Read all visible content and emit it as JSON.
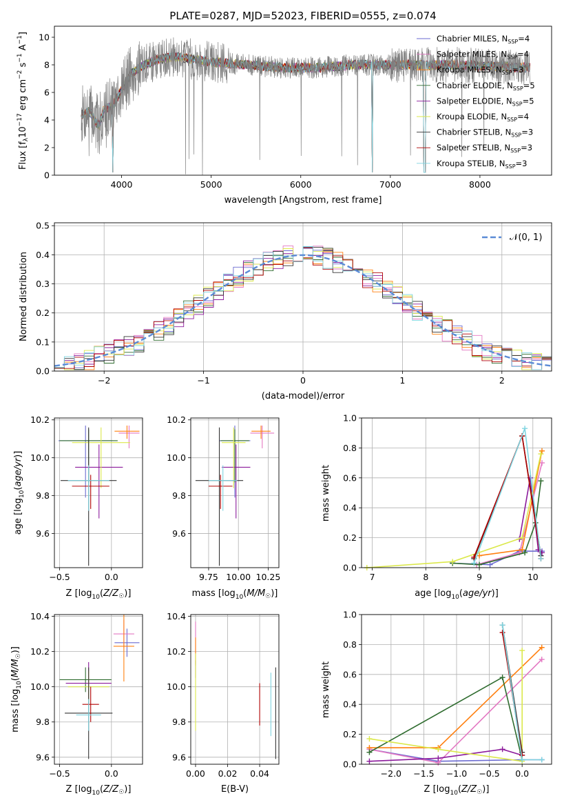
{
  "chart_data": [
    {
      "type": "line",
      "title": "PLATE=0287, MJD=52023, FIBERID=0555, z=0.074",
      "xlabel": "wavelength [Angstrom, rest frame]",
      "ylabel": "Flux [fλ10⁻¹⁷ erg cm⁻² s⁻¹ A⁻¹]",
      "xlim": [
        3250,
        8800
      ],
      "ylim": [
        0,
        10.8
      ],
      "xticks": [
        "4000",
        "5000",
        "6000",
        "7000",
        "8000"
      ],
      "yticks": [
        "0",
        "2",
        "4",
        "6",
        "8",
        "10"
      ],
      "legend_position": "upper right",
      "data_color": "#808080",
      "series": [
        {
          "name": "Chabrier MILES, N_SSP=4",
          "color": "#6a6ad0"
        },
        {
          "name": "Salpeter MILES, N_SSP=4",
          "color": "#e377c2"
        },
        {
          "name": "Kroupa MILES, N_SSP=3",
          "color": "#ff7f0e"
        },
        {
          "name": "Chabrier ELODIE, N_SSP=5",
          "color": "#2e6b2e"
        },
        {
          "name": "Salpeter ELODIE, N_SSP=5",
          "color": "#8b1a9b"
        },
        {
          "name": "Kroupa ELODIE, N_SSP=4",
          "color": "#dbe84a"
        },
        {
          "name": "Chabrier STELIB, N_SSP=3",
          "color": "#333333"
        },
        {
          "name": "Salpeter STELIB, N_SSP=3",
          "color": "#b00000"
        },
        {
          "name": "Kroupa STELIB, N_SSP=3",
          "color": "#7fd4e0"
        }
      ],
      "legend_labels": [
        {
          "pre": "Chabrier MILES, N",
          "sub": "SSP",
          "post": "=4"
        },
        {
          "pre": "Salpeter MILES, N",
          "sub": "SSP",
          "post": "=4"
        },
        {
          "pre": "Kroupa MILES, N",
          "sub": "SSP",
          "post": "=3"
        },
        {
          "pre": "Chabrier ELODIE, N",
          "sub": "SSP",
          "post": "=5"
        },
        {
          "pre": "Salpeter ELODIE, N",
          "sub": "SSP",
          "post": "=5"
        },
        {
          "pre": "Kroupa ELODIE, N",
          "sub": "SSP",
          "post": "=4"
        },
        {
          "pre": "Chabrier STELIB, N",
          "sub": "SSP",
          "post": "=3"
        },
        {
          "pre": "Salpeter STELIB, N",
          "sub": "SSP",
          "post": "=3"
        },
        {
          "pre": "Kroupa STELIB, N",
          "sub": "SSP",
          "post": "=3"
        }
      ],
      "spectrum_keypoints": [
        [
          3550,
          4.4
        ],
        [
          3650,
          4.6
        ],
        [
          3700,
          3.9
        ],
        [
          3750,
          3.6
        ],
        [
          3800,
          4.7
        ],
        [
          3850,
          4.9
        ],
        [
          3900,
          5.0
        ],
        [
          3950,
          5.6
        ],
        [
          4000,
          6.2
        ],
        [
          4100,
          7.3
        ],
        [
          4200,
          7.8
        ],
        [
          4300,
          8.1
        ],
        [
          4400,
          8.4
        ],
        [
          4500,
          8.5
        ],
        [
          4600,
          8.6
        ],
        [
          4700,
          8.5
        ],
        [
          4800,
          8.4
        ],
        [
          4900,
          8.3
        ],
        [
          5000,
          8.2
        ],
        [
          5200,
          8.1
        ],
        [
          5400,
          8.0
        ],
        [
          5600,
          7.9
        ],
        [
          5800,
          7.8
        ],
        [
          6000,
          7.8
        ],
        [
          6200,
          7.8
        ],
        [
          6400,
          7.9
        ],
        [
          6600,
          8.0
        ],
        [
          6800,
          8.0
        ],
        [
          7000,
          8.0
        ],
        [
          7200,
          8.0
        ],
        [
          7400,
          8.0
        ],
        [
          7600,
          8.0
        ],
        [
          7800,
          8.0
        ],
        [
          8000,
          7.9
        ],
        [
          8200,
          7.9
        ],
        [
          8400,
          7.8
        ],
        [
          8550,
          7.8
        ]
      ]
    },
    {
      "type": "bar",
      "xlabel": "(data-model)/error",
      "ylabel": "Normed distribution",
      "xlim": [
        -2.5,
        2.5
      ],
      "ylim": [
        0,
        0.51
      ],
      "xticks": [
        "−2",
        "−1",
        "0",
        "1",
        "2"
      ],
      "yticks": [
        "0.0",
        "0.1",
        "0.2",
        "0.3",
        "0.4",
        "0.5"
      ],
      "grid": true,
      "legend_position": "upper right",
      "legend_label": "𝒩(0, 1)",
      "reference_curve": {
        "name": "N(0,1)",
        "mean": 0,
        "sigma": 1,
        "color": "#5b8bd6",
        "style": "dashed"
      },
      "histogram_bin_width": 0.1
    },
    {
      "type": "scatter",
      "xlabel": "Z [log10(Z/Z☉)]",
      "ylabel": "age [log10(age/yr)]",
      "xlim": [
        -0.55,
        0.3
      ],
      "ylim": [
        9.42,
        10.21
      ],
      "xticks": [
        "−0.5",
        "0.0"
      ],
      "yticks": [
        "9.6",
        "9.8",
        "10.0",
        "10.2"
      ],
      "grid": true,
      "points": [
        {
          "x": -0.25,
          "xerr": 0.26,
          "y": 10.09,
          "yerr_lo": 0.3,
          "yerr_hi": 0.08,
          "color": "#6a6ad0"
        },
        {
          "x": 0.17,
          "xerr": 0.1,
          "y": 10.13,
          "yerr_lo": 0.08,
          "yerr_hi": 0.04,
          "color": "#e377c2"
        },
        {
          "x": 0.15,
          "xerr": 0.12,
          "y": 10.14,
          "yerr_lo": 0.04,
          "yerr_hi": 0.03,
          "color": "#ff7f0e"
        },
        {
          "x": -0.22,
          "xerr": 0.28,
          "y": 10.09,
          "yerr_lo": 0.22,
          "yerr_hi": 0.06,
          "color": "#2e6b2e"
        },
        {
          "x": -0.12,
          "xerr": 0.23,
          "y": 9.95,
          "yerr_lo": 0.27,
          "yerr_hi": 0.12,
          "color": "#8b1a9b"
        },
        {
          "x": -0.1,
          "xerr": 0.28,
          "y": 10.08,
          "yerr_lo": 0.24,
          "yerr_hi": 0.08,
          "color": "#dbe84a"
        },
        {
          "x": -0.22,
          "xerr": 0.27,
          "y": 9.88,
          "yerr_lo": 0.45,
          "yerr_hi": 0.28,
          "color": "#333333"
        },
        {
          "x": -0.2,
          "xerr": 0.18,
          "y": 9.85,
          "yerr_lo": 0.12,
          "yerr_hi": 0.06,
          "color": "#b00000"
        },
        {
          "x": -0.22,
          "xerr": 0.2,
          "y": 9.88,
          "yerr_lo": 0.16,
          "yerr_hi": 0.08,
          "color": "#7fd4e0"
        }
      ]
    },
    {
      "type": "scatter",
      "xlabel": "mass [log10(M/M☉)]",
      "xlim": [
        9.6,
        10.34
      ],
      "ylim": [
        9.42,
        10.21
      ],
      "xticks": [
        "9.75",
        "10.00",
        "10.25"
      ],
      "yticks": [
        "9.6",
        "9.8",
        "10.0",
        "10.2"
      ],
      "grid": true,
      "points": [
        {
          "x": 9.97,
          "xerr": 0.13,
          "y": 10.09,
          "yerr_lo": 0.3,
          "yerr_hi": 0.08,
          "color": "#6a6ad0"
        },
        {
          "x": 10.2,
          "xerr": 0.1,
          "y": 10.13,
          "yerr_lo": 0.08,
          "yerr_hi": 0.04,
          "color": "#e377c2"
        },
        {
          "x": 10.19,
          "xerr": 0.08,
          "y": 10.14,
          "yerr_lo": 0.04,
          "yerr_hi": 0.03,
          "color": "#ff7f0e"
        },
        {
          "x": 9.97,
          "xerr": 0.12,
          "y": 10.09,
          "yerr_lo": 0.22,
          "yerr_hi": 0.06,
          "color": "#2e6b2e"
        },
        {
          "x": 9.98,
          "xerr": 0.12,
          "y": 9.95,
          "yerr_lo": 0.27,
          "yerr_hi": 0.12,
          "color": "#8b1a9b"
        },
        {
          "x": 9.96,
          "xerr": 0.1,
          "y": 10.08,
          "yerr_lo": 0.24,
          "yerr_hi": 0.08,
          "color": "#dbe84a"
        },
        {
          "x": 9.84,
          "xerr": 0.2,
          "y": 9.88,
          "yerr_lo": 0.45,
          "yerr_hi": 0.28,
          "color": "#333333"
        },
        {
          "x": 9.85,
          "xerr": 0.1,
          "y": 9.85,
          "yerr_lo": 0.12,
          "yerr_hi": 0.06,
          "color": "#b00000"
        },
        {
          "x": 9.87,
          "xerr": 0.12,
          "y": 9.88,
          "yerr_lo": 0.16,
          "yerr_hi": 0.08,
          "color": "#7fd4e0"
        }
      ]
    },
    {
      "type": "line",
      "xlabel": "age [log10(age/yr)]",
      "ylabel": "mass weight",
      "xlim": [
        6.8,
        10.35
      ],
      "ylim": [
        0,
        1.0
      ],
      "xticks": [
        "7",
        "8",
        "9",
        "10"
      ],
      "yticks": [
        "0.0",
        "0.2",
        "0.4",
        "0.6",
        "0.8",
        "1.0"
      ],
      "grid": true,
      "series": [
        {
          "color": "#6a6ad0",
          "points": [
            [
              8.5,
              0.03
            ],
            [
              9.2,
              0.02
            ],
            [
              9.75,
              0.11
            ],
            [
              10.17,
              0.11
            ]
          ]
        },
        {
          "color": "#e377c2",
          "points": [
            [
              8.95,
              0.02
            ],
            [
              9.75,
              0.1
            ],
            [
              10.17,
              0.7
            ]
          ]
        },
        {
          "color": "#ff7f0e",
          "points": [
            [
              9.0,
              0.08
            ],
            [
              9.8,
              0.12
            ],
            [
              10.17,
              0.78
            ]
          ]
        },
        {
          "color": "#2e6b2e",
          "points": [
            [
              8.5,
              0.03
            ],
            [
              9.0,
              0.02
            ],
            [
              9.85,
              0.1
            ],
            [
              10.05,
              0.3
            ],
            [
              10.15,
              0.58
            ]
          ]
        },
        {
          "color": "#8b1a9b",
          "points": [
            [
              9.75,
              0.19
            ],
            [
              9.95,
              0.6
            ],
            [
              10.1,
              0.12
            ],
            [
              10.17,
              0.1
            ]
          ]
        },
        {
          "color": "#dbe84a",
          "points": [
            [
              6.9,
              0.0
            ],
            [
              8.5,
              0.04
            ],
            [
              9.8,
              0.2
            ],
            [
              10.15,
              0.76
            ]
          ]
        },
        {
          "color": "#333333",
          "points": [
            [
              8.9,
              0.06
            ],
            [
              9.8,
              0.88
            ],
            [
              10.15,
              0.08
            ]
          ]
        },
        {
          "color": "#b00000",
          "points": [
            [
              8.9,
              0.07
            ],
            [
              9.8,
              0.88
            ],
            [
              10.15,
              0.06
            ]
          ]
        },
        {
          "color": "#7fd4e0",
          "points": [
            [
              8.9,
              0.03
            ],
            [
              9.85,
              0.93
            ],
            [
              10.15,
              0.06
            ]
          ]
        }
      ]
    },
    {
      "type": "scatter",
      "xlabel": "Z [log10(Z/Z☉)]",
      "ylabel": "mass [log10(M/M☉)]",
      "xlim": [
        -0.55,
        0.3
      ],
      "ylim": [
        9.56,
        10.41
      ],
      "xticks": [
        "−0.5",
        "0.0"
      ],
      "yticks": [
        "9.6",
        "9.8",
        "10.0",
        "10.2",
        "10.4"
      ],
      "grid": true,
      "points": [
        {
          "x": 0.15,
          "xerr": 0.12,
          "y": 10.25,
          "yerr": 0.08,
          "color": "#6a6ad0"
        },
        {
          "x": 0.12,
          "xerr": 0.1,
          "y": 10.3,
          "yerr": 0.08,
          "color": "#e377c2"
        },
        {
          "x": 0.12,
          "xerr": 0.1,
          "y": 10.23,
          "yerr": 0.2,
          "color": "#ff7f0e"
        },
        {
          "x": -0.25,
          "xerr": 0.25,
          "y": 10.04,
          "yerr": 0.07,
          "color": "#2e6b2e"
        },
        {
          "x": -0.22,
          "xerr": 0.22,
          "y": 10.02,
          "yerr": 0.12,
          "color": "#8b1a9b"
        },
        {
          "x": -0.22,
          "xerr": 0.2,
          "y": 10.0,
          "yerr": 0.09,
          "color": "#dbe84a"
        },
        {
          "x": -0.22,
          "xerr": 0.23,
          "y": 9.85,
          "yerr": 0.26,
          "color": "#333333"
        },
        {
          "x": -0.2,
          "xerr": 0.08,
          "y": 9.9,
          "yerr": 0.1,
          "color": "#b00000"
        },
        {
          "x": -0.22,
          "xerr": 0.12,
          "y": 9.84,
          "yerr": 0.09,
          "color": "#7fd4e0"
        }
      ]
    },
    {
      "type": "scatter",
      "xlabel": "E(B-V)",
      "xlim": [
        -0.003,
        0.052
      ],
      "ylim": [
        9.56,
        10.41
      ],
      "xticks": [
        "0.00",
        "0.02",
        "0.04"
      ],
      "yticks": [
        "9.6",
        "9.8",
        "10.0",
        "10.2",
        "10.4"
      ],
      "grid": true,
      "points": [
        {
          "x": 0.0,
          "y": 10.25,
          "yerr": 0.12,
          "color": "#e377c2"
        },
        {
          "x": 0.0,
          "y": 10.2,
          "yerr": 0.08,
          "color": "#ff7f0e"
        },
        {
          "x": 0.0,
          "y": 10.1,
          "yerr": 0.05,
          "color": "#8b1a9b"
        },
        {
          "x": 0.0,
          "y": 9.97,
          "yerr": 0.22,
          "color": "#dbe84a"
        },
        {
          "x": 0.04,
          "y": 9.9,
          "yerr": 0.12,
          "color": "#b00000"
        },
        {
          "x": 0.047,
          "y": 9.9,
          "yerr": 0.18,
          "color": "#7fd4e0"
        },
        {
          "x": 0.05,
          "y": 9.85,
          "yerr": 0.26,
          "color": "#333333"
        }
      ]
    },
    {
      "type": "line",
      "xlabel": "Z [log10(Z/Z☉)]",
      "ylabel": "mass weight",
      "xlim": [
        -2.45,
        0.45
      ],
      "ylim": [
        0,
        1.0
      ],
      "xticks": [
        "−2.0",
        "−1.5",
        "−1.0",
        "−0.5",
        "0.0"
      ],
      "yticks": [
        "0.0",
        "0.2",
        "0.4",
        "0.6",
        "0.8",
        "1.0"
      ],
      "grid": true,
      "series": [
        {
          "color": "#6a6ad0",
          "points": [
            [
              -2.33,
              0.1
            ],
            [
              -1.28,
              0.02
            ],
            [
              0.0,
              0.03
            ],
            [
              0.3,
              0.03
            ]
          ]
        },
        {
          "color": "#e377c2",
          "points": [
            [
              -2.33,
              0.1
            ],
            [
              -1.28,
              0.01
            ],
            [
              0.3,
              0.7
            ]
          ]
        },
        {
          "color": "#ff7f0e",
          "points": [
            [
              -2.33,
              0.11
            ],
            [
              -1.28,
              0.11
            ],
            [
              0.3,
              0.78
            ]
          ]
        },
        {
          "color": "#2e6b2e",
          "points": [
            [
              -2.33,
              0.08
            ],
            [
              -0.3,
              0.58
            ],
            [
              0.0,
              0.03
            ]
          ]
        },
        {
          "color": "#8b1a9b",
          "points": [
            [
              -2.33,
              0.02
            ],
            [
              -1.28,
              0.04
            ],
            [
              -0.3,
              0.1
            ],
            [
              0.0,
              0.06
            ]
          ]
        },
        {
          "color": "#dbe84a",
          "points": [
            [
              -2.33,
              0.17
            ],
            [
              -1.28,
              0.1
            ],
            [
              0.0,
              0.02
            ],
            [
              0.0,
              0.76
            ]
          ]
        },
        {
          "color": "#333333",
          "points": [
            [
              -0.3,
              0.93
            ],
            [
              0.0,
              0.08
            ]
          ]
        },
        {
          "color": "#b00000",
          "points": [
            [
              -0.3,
              0.88
            ],
            [
              0.0,
              0.06
            ]
          ]
        },
        {
          "color": "#7fd4e0",
          "points": [
            [
              -0.3,
              0.93
            ],
            [
              0.0,
              0.03
            ],
            [
              0.3,
              0.03
            ]
          ]
        }
      ]
    }
  ]
}
